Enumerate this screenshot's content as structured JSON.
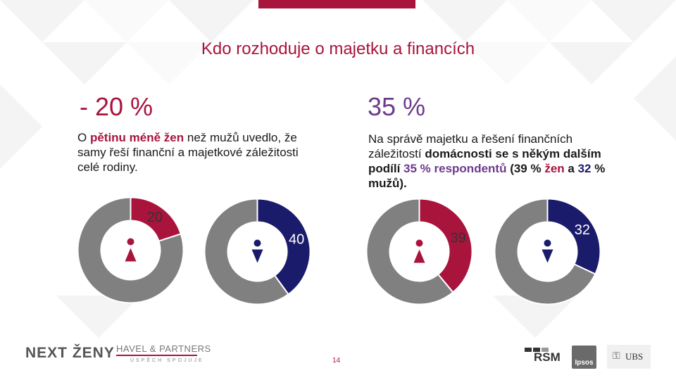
{
  "title": "Kdo rozhoduje o majetku a financích",
  "left": {
    "headline": "- 20 %",
    "text": {
      "p1": "O ",
      "b1": "pětinu méně žen",
      "p2": " než mužů uvedlo, že samy řeší finanční a majetkové záležitosti celé rodiny."
    }
  },
  "right": {
    "headline": "35 %",
    "text": {
      "p1": "Na správě majetku a řešení finančních záležitostí ",
      "b1": "domácnosti se s někým dalším podílí ",
      "b2": "35 % respondentů",
      "b3": " (39 % ",
      "b4": "žen",
      "b5": " a ",
      "b6": "32",
      "b7": " % mužů)."
    }
  },
  "donuts": [
    {
      "gender": "female",
      "value": 20,
      "label": "20",
      "color": "#a8143c"
    },
    {
      "gender": "male",
      "value": 40,
      "label": "40",
      "color": "#1b1b6b"
    },
    {
      "gender": "female",
      "value": 39,
      "label": "39",
      "color": "#a8143c"
    },
    {
      "gender": "male",
      "value": 32,
      "label": "32",
      "color": "#1b1b6b"
    }
  ],
  "colors": {
    "remainder": "#808080",
    "accent": "#a8143c",
    "purple": "#6d3a8c",
    "navy": "#1b1b6b"
  },
  "footer": {
    "next_zeny": "NEXT ŽENY",
    "havel": "HAVEL & PARTNERS",
    "havel_sub": "ÚSPĚCH SPOJUJE",
    "page": "14",
    "rsm": "RSM",
    "ipsos": "Ipsos",
    "ubs": "UBS"
  }
}
